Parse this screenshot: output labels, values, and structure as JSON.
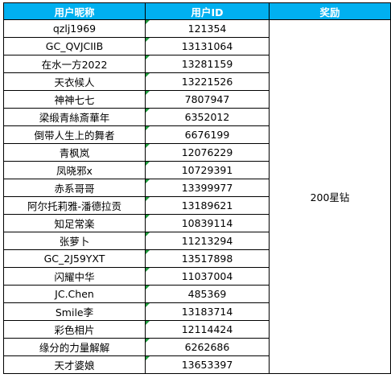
{
  "headers": {
    "nickname": "用户昵称",
    "user_id": "用户ID",
    "reward": "奖励"
  },
  "reward_value": "200星钻",
  "rows": [
    {
      "nickname": "qzlj1969",
      "id": "121354"
    },
    {
      "nickname": "GC_QVJCIIB",
      "id": "13131064"
    },
    {
      "nickname": "在水一方2022",
      "id": "13281159"
    },
    {
      "nickname": "天衣候人",
      "id": "13221526"
    },
    {
      "nickname": "神神七七",
      "id": "7807947"
    },
    {
      "nickname": "梁缎青絲斎華年",
      "id": "6352012"
    },
    {
      "nickname": "倒带人生上的舞者",
      "id": "6676199"
    },
    {
      "nickname": "青枫岚",
      "id": "12076229"
    },
    {
      "nickname": "凤晓邪x",
      "id": "10729391"
    },
    {
      "nickname": "赤系哥哥",
      "id": "13399977"
    },
    {
      "nickname": "阿尔托莉雅-潘德拉贡",
      "id": "13189621"
    },
    {
      "nickname": "知足常楽",
      "id": "10839114"
    },
    {
      "nickname": "张萝卜",
      "id": "11213294"
    },
    {
      "nickname": "GC_2J59YXT",
      "id": "13517898"
    },
    {
      "nickname": "闪耀中华",
      "id": "11037004"
    },
    {
      "nickname": "JC.Chen",
      "id": "485369"
    },
    {
      "nickname": "Smile李",
      "id": "13183714"
    },
    {
      "nickname": "彩色相片",
      "id": "12114424"
    },
    {
      "nickname": "缘分的力量解解",
      "id": "6262686"
    },
    {
      "nickname": "天才婆娘",
      "id": "13653397"
    }
  ]
}
